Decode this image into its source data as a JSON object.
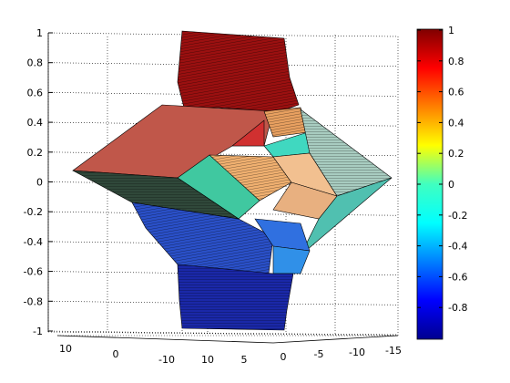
{
  "chart_data": {
    "type": "surface3d",
    "title": "",
    "xlabel": "",
    "ylabel": "",
    "zlabel": "",
    "z_range": [
      -1,
      1
    ],
    "z_ticks": [
      "-1",
      "-0.8",
      "-0.6",
      "-0.4",
      "-0.2",
      "0",
      "0.2",
      "0.4",
      "0.6",
      "0.8",
      "1"
    ],
    "x_ticks": [
      "10",
      "0",
      "-10"
    ],
    "y_ticks": [
      "10",
      "5",
      "0",
      "-5",
      "-10",
      "-15"
    ],
    "grid": true,
    "colormap": "jet",
    "colorbar": {
      "range": [
        -1,
        1
      ],
      "ticks": [
        "1",
        "0.8",
        "0.6",
        "0.4",
        "0.2",
        "0",
        "-0.2",
        "-0.4",
        "-0.6",
        "-0.8"
      ]
    },
    "colors": {
      "red": "#c0392b",
      "dark_red": "#8b1a1a",
      "orange": "#f0a060",
      "cyan": "#40e0c0",
      "green": "#3cc4a0",
      "blue": "#2050d0",
      "dark_blue": "#101890"
    }
  }
}
